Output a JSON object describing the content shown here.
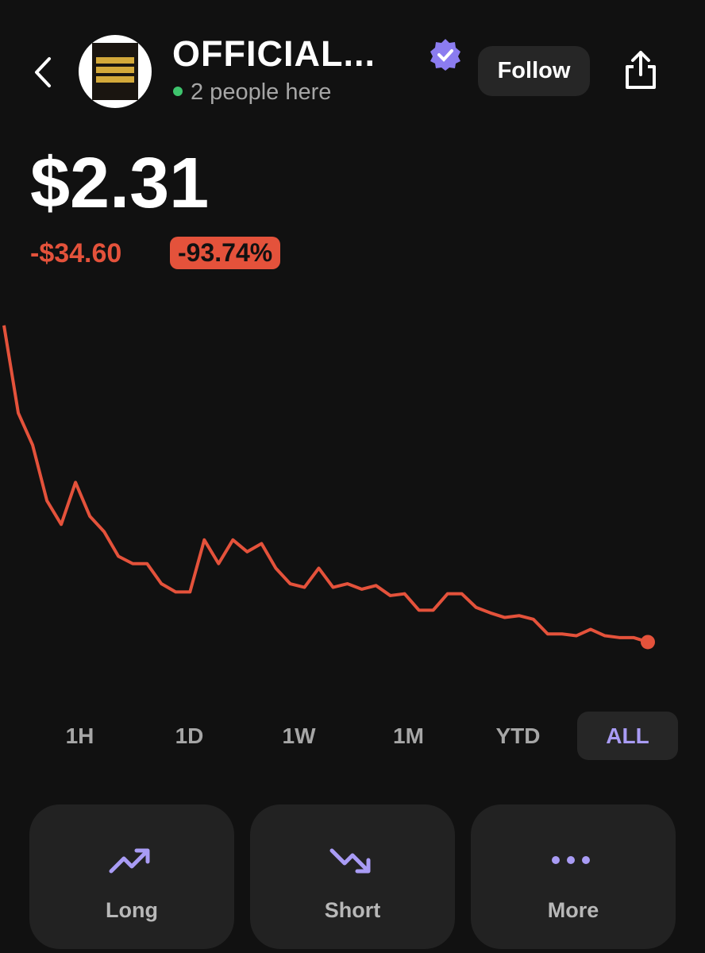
{
  "header": {
    "name": "OFFICIAL...",
    "presence": "2 people here",
    "follow": "Follow"
  },
  "price": "$2.31",
  "change": "-$34.60",
  "change_pct": "-93.74%",
  "chart_data": {
    "type": "line",
    "color": "#e4523b",
    "values": [
      37.0,
      27.4,
      23.9,
      17.8,
      15.2,
      19.8,
      16.1,
      14.4,
      11.7,
      10.9,
      10.9,
      8.7,
      7.8,
      7.8,
      13.5,
      10.9,
      13.5,
      12.2,
      13.1,
      10.4,
      8.7,
      8.3,
      10.4,
      8.3,
      8.7,
      8.1,
      8.5,
      7.4,
      7.6,
      5.8,
      5.8,
      7.6,
      7.6,
      6.1,
      5.5,
      5.0,
      5.2,
      4.8,
      3.2,
      3.2,
      3.0,
      3.7,
      3.0,
      2.8,
      2.8,
      2.31
    ],
    "ylim": [
      0,
      37.5
    ]
  },
  "ranges": [
    "1H",
    "1D",
    "1W",
    "1M",
    "YTD",
    "ALL"
  ],
  "selected_range": 5,
  "actions": [
    "Long",
    "Short",
    "More"
  ]
}
